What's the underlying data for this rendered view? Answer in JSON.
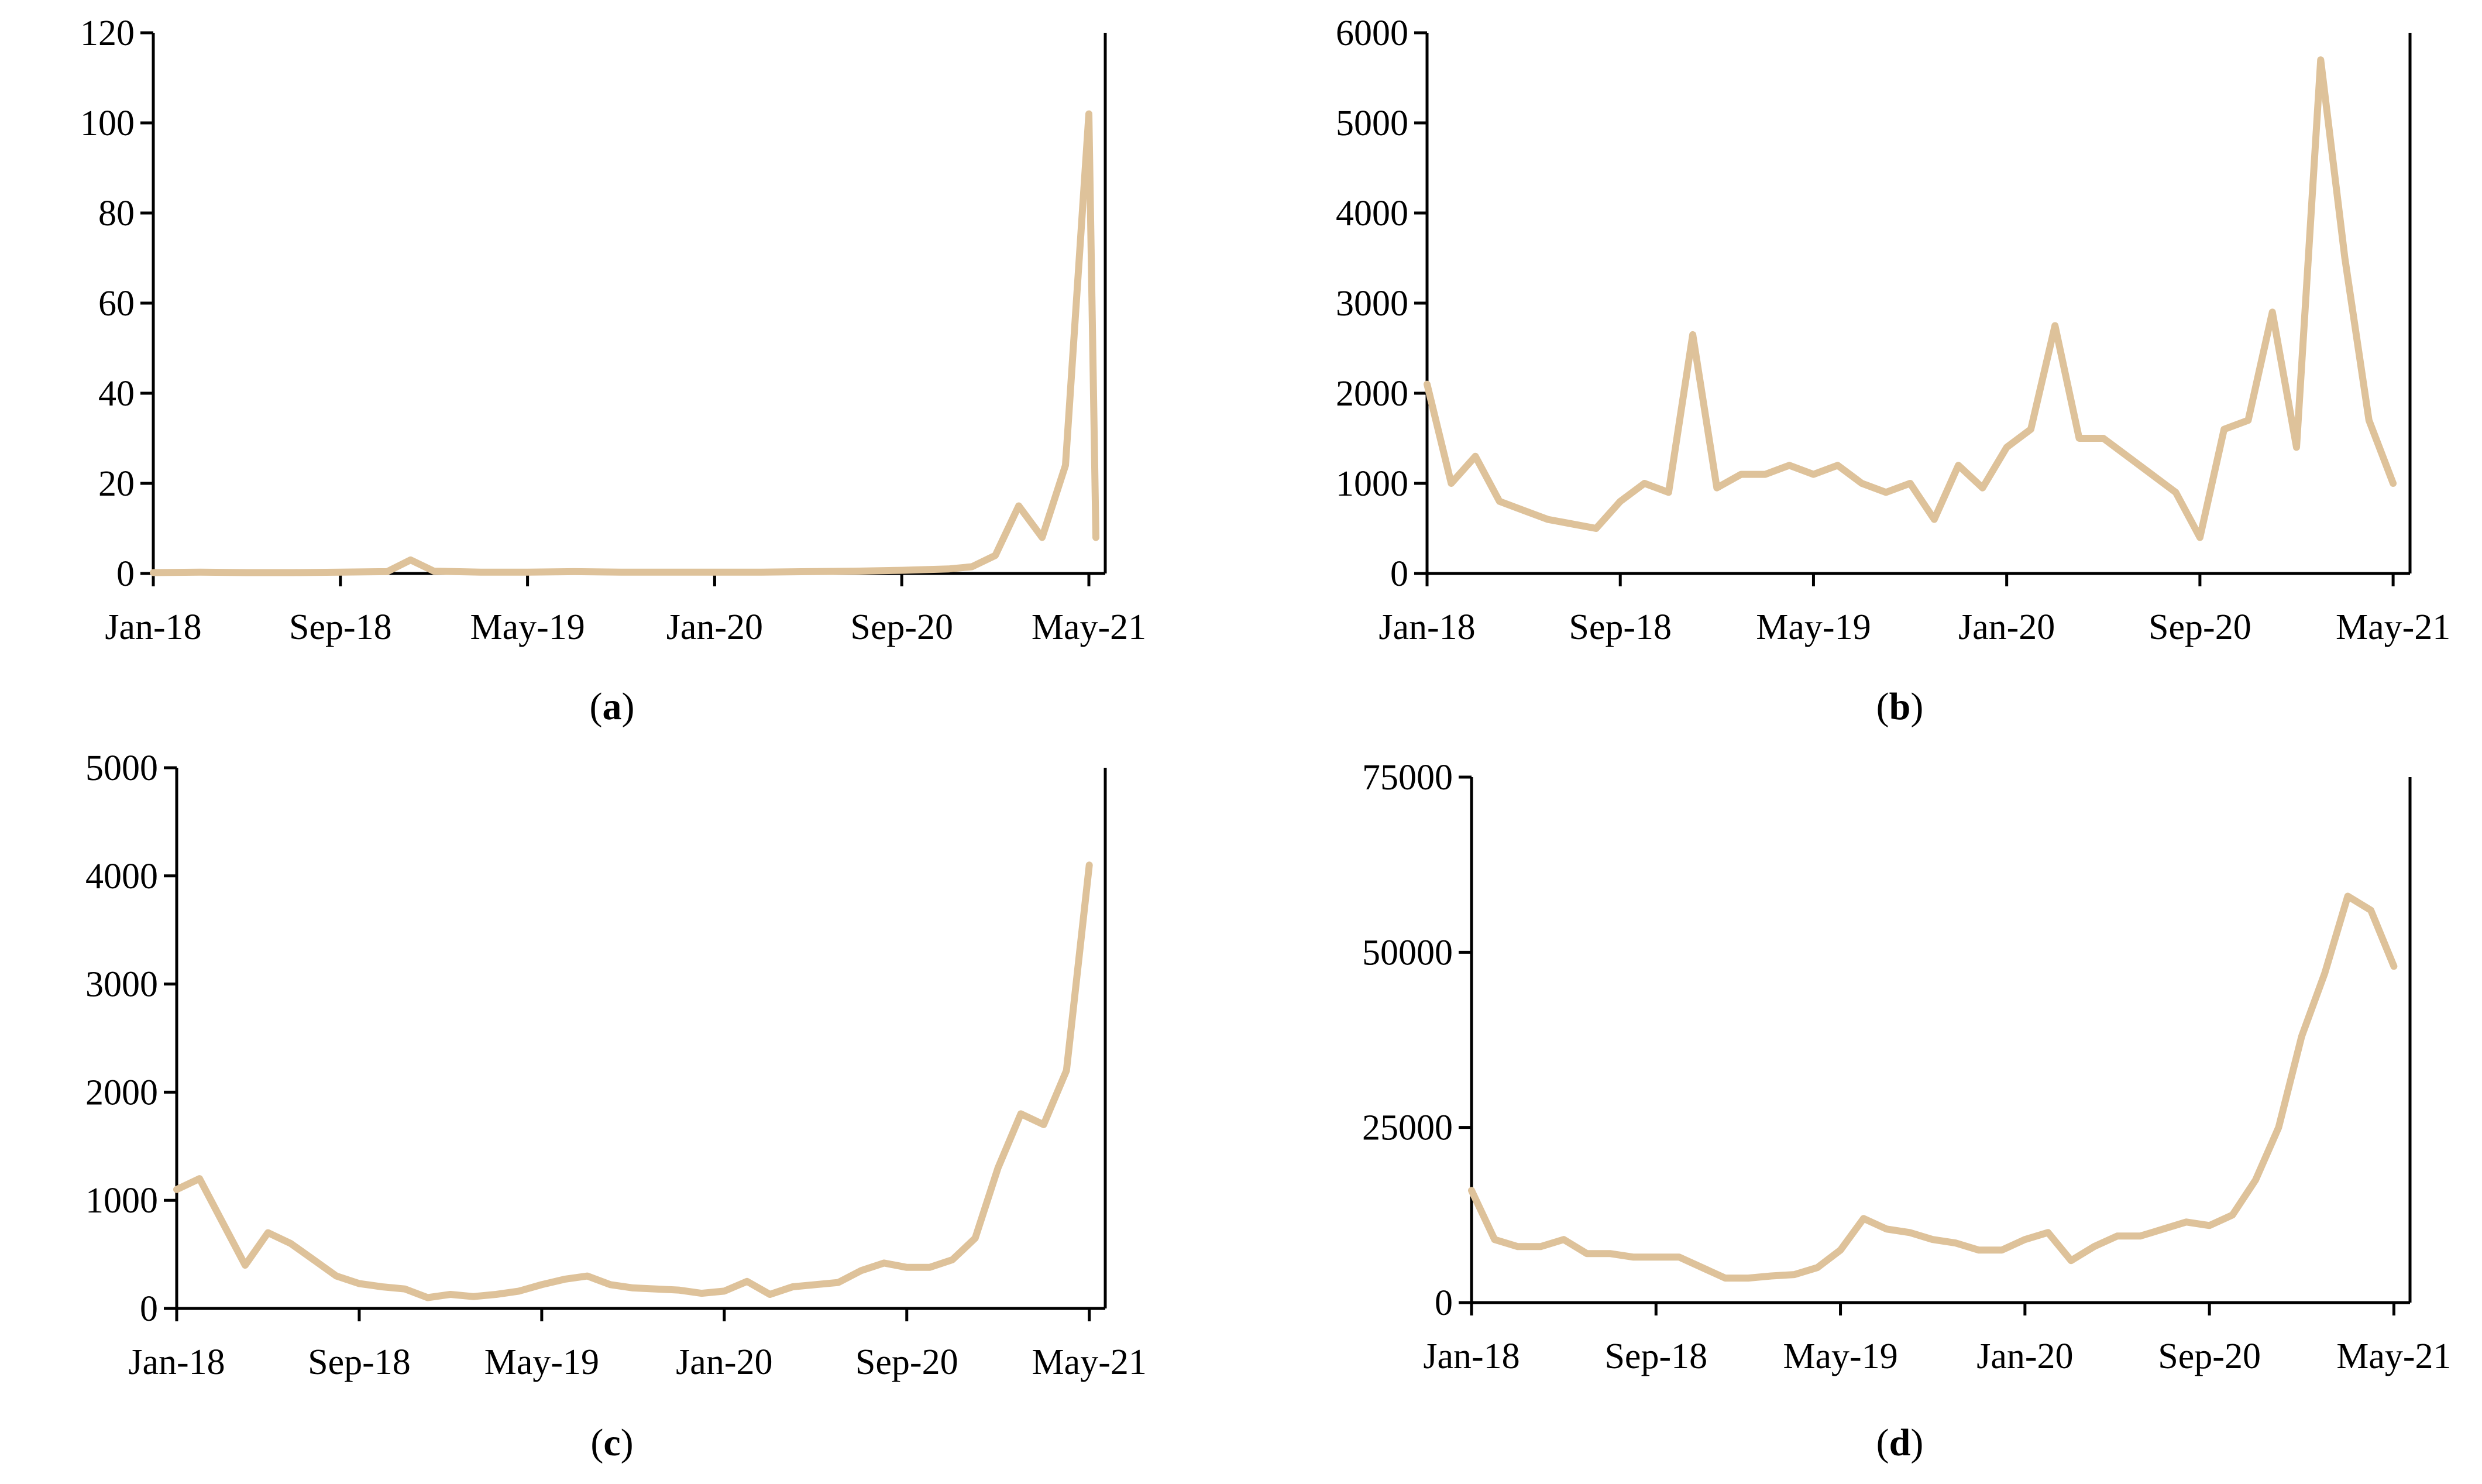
{
  "line_color": "#DEC29A",
  "axis_color": "#000000",
  "chart_data": [
    {
      "panel": "a",
      "caption_letter": "a",
      "type": "line",
      "x_ticks": [
        "Jan-18",
        "Sep-18",
        "May-19",
        "Jan-20",
        "Sep-20",
        "May-21"
      ],
      "ylim": [
        0,
        120
      ],
      "y_ticks": [
        "0",
        "20",
        "40",
        "60",
        "80",
        "100",
        "120"
      ],
      "grid": false,
      "x": [
        "Jan-18",
        "Mar-18",
        "May-18",
        "Jul-18",
        "Sep-18",
        "Nov-18",
        "Dec-18",
        "Jan-19",
        "Mar-19",
        "May-19",
        "Jul-19",
        "Sep-19",
        "Nov-19",
        "Jan-20",
        "Mar-20",
        "May-20",
        "Jul-20",
        "Sep-20",
        "Nov-20",
        "Dec-20",
        "Jan-21",
        "Feb-21",
        "Mar-21",
        "Apr-21",
        "May-21",
        "May-21"
      ],
      "values": [
        0.2,
        0.3,
        0.2,
        0.2,
        0.3,
        0.4,
        3,
        0.5,
        0.3,
        0.3,
        0.4,
        0.3,
        0.3,
        0.3,
        0.3,
        0.4,
        0.5,
        0.7,
        1,
        1.5,
        4,
        15,
        8,
        24,
        102,
        8
      ]
    },
    {
      "panel": "b",
      "caption_letter": "b",
      "type": "line",
      "x_ticks": [
        "Jan-18",
        "Sep-18",
        "May-19",
        "Jan-20",
        "Sep-20",
        "May-21"
      ],
      "ylim": [
        0,
        6000
      ],
      "y_ticks": [
        "0",
        "1000",
        "2000",
        "3000",
        "4000",
        "5000",
        "6000"
      ],
      "grid": false,
      "x": [
        "Jan-18",
        "Feb-18",
        "Mar-18",
        "Apr-18",
        "May-18",
        "Jun-18",
        "Jul-18",
        "Aug-18",
        "Sep-18",
        "Oct-18",
        "Nov-18",
        "Dec-18",
        "Jan-19",
        "Feb-19",
        "Mar-19",
        "Apr-19",
        "May-19",
        "Jun-19",
        "Jul-19",
        "Aug-19",
        "Sep-19",
        "Oct-19",
        "Nov-19",
        "Dec-19",
        "Jan-20",
        "Feb-20",
        "Mar-20",
        "Apr-20",
        "May-20",
        "Jun-20",
        "Jul-20",
        "Aug-20",
        "Sep-20",
        "Oct-20",
        "Nov-20",
        "Dec-20",
        "Jan-21",
        "Feb-21",
        "Mar-21",
        "Apr-21",
        "May-21"
      ],
      "values": [
        2100,
        1000,
        1300,
        800,
        700,
        600,
        550,
        500,
        800,
        1000,
        900,
        2650,
        950,
        1100,
        1100,
        1200,
        1100,
        1200,
        1000,
        900,
        1000,
        600,
        1200,
        950,
        1400,
        1600,
        2750,
        1500,
        1500,
        1300,
        1100,
        900,
        400,
        1600,
        1700,
        2900,
        1400,
        5700,
        3500,
        1700,
        1000
      ]
    },
    {
      "panel": "c",
      "caption_letter": "c",
      "type": "line",
      "x_ticks": [
        "Jan-18",
        "Sep-18",
        "May-19",
        "Jan-20",
        "Sep-20",
        "May-21"
      ],
      "ylim": [
        0,
        5000
      ],
      "y_ticks": [
        "0",
        "1000",
        "2000",
        "3000",
        "4000",
        "5000"
      ],
      "grid": false,
      "x": [
        "Jan-18",
        "Feb-18",
        "Mar-18",
        "Apr-18",
        "May-18",
        "Jun-18",
        "Jul-18",
        "Aug-18",
        "Sep-18",
        "Oct-18",
        "Nov-18",
        "Dec-18",
        "Jan-19",
        "Feb-19",
        "Mar-19",
        "Apr-19",
        "May-19",
        "Jun-19",
        "Jul-19",
        "Aug-19",
        "Sep-19",
        "Oct-19",
        "Nov-19",
        "Dec-19",
        "Jan-20",
        "Feb-20",
        "Mar-20",
        "Apr-20",
        "May-20",
        "Jun-20",
        "Jul-20",
        "Aug-20",
        "Sep-20",
        "Oct-20",
        "Nov-20",
        "Dec-20",
        "Jan-21",
        "Feb-21",
        "Mar-21",
        "Apr-21",
        "May-21"
      ],
      "values": [
        1100,
        1200,
        800,
        400,
        700,
        600,
        450,
        300,
        230,
        200,
        180,
        100,
        130,
        110,
        130,
        160,
        220,
        270,
        300,
        220,
        190,
        180,
        170,
        140,
        160,
        250,
        130,
        200,
        220,
        240,
        350,
        420,
        380,
        380,
        450,
        650,
        1300,
        1800,
        1700,
        2200,
        4100
      ]
    },
    {
      "panel": "d",
      "caption_letter": "d",
      "type": "line",
      "x_ticks": [
        "Jan-18",
        "Sep-18",
        "May-19",
        "Jan-20",
        "Sep-20",
        "May-21"
      ],
      "ylim": [
        0,
        75000
      ],
      "y_ticks": [
        "0",
        "25000",
        "50000",
        "75000"
      ],
      "grid": false,
      "x": [
        "Jan-18",
        "Feb-18",
        "Mar-18",
        "Apr-18",
        "May-18",
        "Jun-18",
        "Jul-18",
        "Aug-18",
        "Sep-18",
        "Oct-18",
        "Nov-18",
        "Dec-18",
        "Jan-19",
        "Feb-19",
        "Mar-19",
        "Apr-19",
        "May-19",
        "Jun-19",
        "Jul-19",
        "Aug-19",
        "Sep-19",
        "Oct-19",
        "Nov-19",
        "Dec-19",
        "Jan-20",
        "Feb-20",
        "Mar-20",
        "Apr-20",
        "May-20",
        "Jun-20",
        "Jul-20",
        "Aug-20",
        "Sep-20",
        "Oct-20",
        "Nov-20",
        "Dec-20",
        "Jan-21",
        "Feb-21",
        "Mar-21",
        "Apr-21",
        "May-21"
      ],
      "values": [
        16000,
        9000,
        8000,
        8000,
        9000,
        7000,
        7000,
        6500,
        6500,
        6500,
        5000,
        3500,
        3500,
        3800,
        4000,
        5000,
        7500,
        12000,
        10500,
        10000,
        9000,
        8500,
        7500,
        7500,
        9000,
        10000,
        6000,
        8000,
        9500,
        9500,
        10500,
        11500,
        11000,
        12500,
        17500,
        25000,
        38000,
        47000,
        58000,
        56000,
        48000
      ]
    }
  ]
}
